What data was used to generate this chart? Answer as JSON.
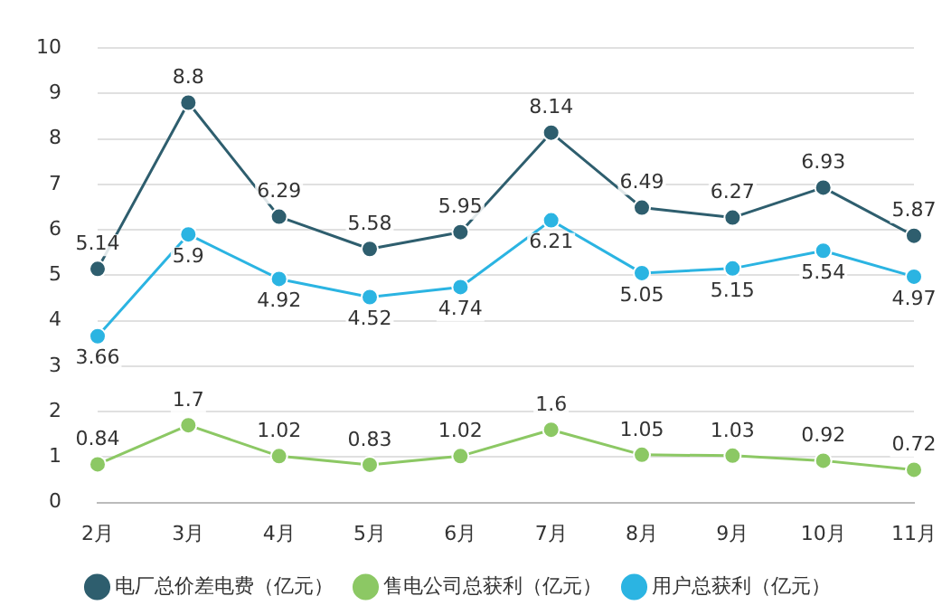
{
  "chart_data": {
    "type": "line",
    "categories": [
      "2月",
      "3月",
      "4月",
      "5月",
      "6月",
      "7月",
      "8月",
      "9月",
      "10月",
      "11月"
    ],
    "series": [
      {
        "name": "电厂总价差电费（亿元）",
        "color": "#2e5e6e",
        "values": [
          5.14,
          8.8,
          6.29,
          5.58,
          5.95,
          8.14,
          6.49,
          6.27,
          6.93,
          5.87
        ]
      },
      {
        "name": "售电公司总获利（亿元）",
        "color": "#8cc864",
        "values": [
          0.84,
          1.7,
          1.02,
          0.83,
          1.02,
          1.6,
          1.05,
          1.03,
          0.92,
          0.72
        ]
      },
      {
        "name": "用户总获利（亿元）",
        "color": "#2bb4e2",
        "values": [
          3.66,
          5.9,
          4.92,
          4.52,
          4.74,
          6.21,
          5.05,
          5.15,
          5.54,
          4.97
        ]
      }
    ],
    "ylim": [
      0,
      10
    ],
    "yticks": [
      0,
      1,
      2,
      3,
      4,
      5,
      6,
      7,
      8,
      9,
      10
    ],
    "grid": "y",
    "legend": "bottom",
    "marker": "circle",
    "line_style": "solid",
    "data_labels": true
  }
}
